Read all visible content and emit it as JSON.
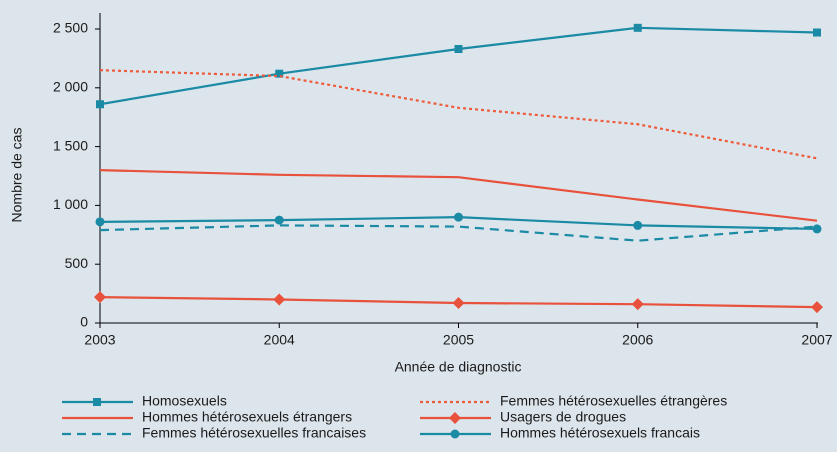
{
  "chart_data": {
    "type": "line",
    "xlabel": "Année de diagnostic",
    "ylabel": "Nombre de cas",
    "x": [
      2003,
      2004,
      2005,
      2006,
      2007
    ],
    "xlim": [
      2003,
      2007
    ],
    "xticks": [
      2003,
      2004,
      2005,
      2006,
      2007
    ],
    "ylim": [
      0,
      2500
    ],
    "yticks": [
      0,
      {
        "value": 500,
        "label": "500"
      },
      {
        "value": 1000,
        "label": "1 000"
      },
      {
        "value": 1500,
        "label": "1 500"
      },
      {
        "value": 2000,
        "label": "2 000"
      },
      {
        "value": 2500,
        "label": "2 500"
      }
    ],
    "grid": false,
    "series": [
      {
        "name": "Homosexuels",
        "color": "#1a8aa5",
        "marker": "square",
        "dash": "solid",
        "values": [
          1860,
          2120,
          2330,
          2510,
          2470
        ]
      },
      {
        "name": "Femmes hétérosexuelles étrangères",
        "color": "#ee5a3a",
        "marker": "none",
        "dash": "dotted",
        "values": [
          2150,
          2100,
          1830,
          1690,
          1400
        ]
      },
      {
        "name": "Hommes hétérosexuels étrangers",
        "color": "#e8513b",
        "marker": "none",
        "dash": "solid",
        "values": [
          1300,
          1260,
          1240,
          1050,
          870
        ]
      },
      {
        "name": "Usagers de drogues",
        "color": "#e8513b",
        "marker": "diamond",
        "dash": "solid",
        "values": [
          220,
          200,
          170,
          160,
          135
        ]
      },
      {
        "name": "Femmes hétérosexuelles francaises",
        "color": "#1a8aa5",
        "marker": "none",
        "dash": "dashed",
        "values": [
          790,
          830,
          820,
          700,
          820
        ]
      },
      {
        "name": "Hommes hétérosexuels francais",
        "color": "#1a8aa5",
        "marker": "circle",
        "dash": "solid",
        "values": [
          860,
          875,
          900,
          830,
          800
        ]
      }
    ]
  }
}
